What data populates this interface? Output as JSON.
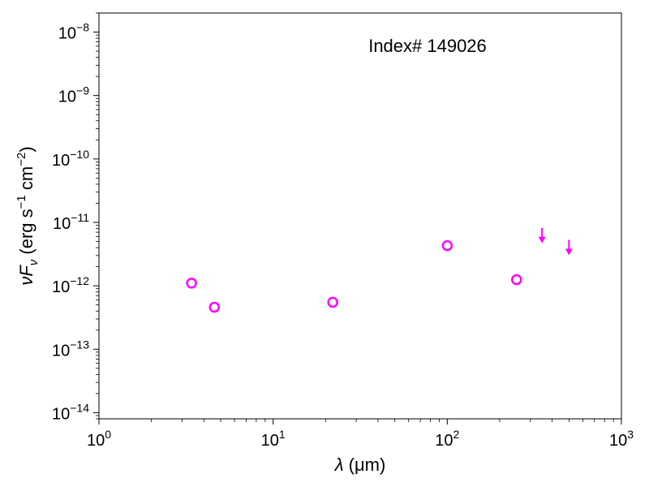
{
  "chart_data": {
    "type": "scatter",
    "annotation": "Index# 149026",
    "xlabel": {
      "symbol": "λ",
      "unit": "(μm)"
    },
    "ylabel": {
      "main": "νF",
      "sub": "ν",
      "unit_prefix": "(erg s",
      "sup1": "−1",
      "unit_mid": " cm",
      "sup2": "−2",
      "unit_suffix": ")"
    },
    "xscale": "log",
    "yscale": "log",
    "xlim": [
      1,
      1000
    ],
    "ylim": [
      8e-15,
      2e-08
    ],
    "xticks": [
      {
        "value": 1,
        "base": "10",
        "exp": "0"
      },
      {
        "value": 10,
        "base": "10",
        "exp": "1"
      },
      {
        "value": 100,
        "base": "10",
        "exp": "2"
      },
      {
        "value": 1000,
        "base": "10",
        "exp": "3"
      }
    ],
    "yticks": [
      {
        "value": 1e-14,
        "base": "10",
        "exp": "−14"
      },
      {
        "value": 1e-13,
        "base": "10",
        "exp": "−13"
      },
      {
        "value": 1e-12,
        "base": "10",
        "exp": "−12"
      },
      {
        "value": 1e-11,
        "base": "10",
        "exp": "−11"
      },
      {
        "value": 1e-10,
        "base": "10",
        "exp": "−10"
      },
      {
        "value": 1e-09,
        "base": "10",
        "exp": "−9"
      },
      {
        "value": 1e-08,
        "base": "10",
        "exp": "−8"
      }
    ],
    "marker_color": "#ff00ff",
    "detections": [
      {
        "x": 3.4,
        "y": 1.1e-12
      },
      {
        "x": 4.6,
        "y": 4.6e-13
      },
      {
        "x": 22,
        "y": 5.5e-13
      },
      {
        "x": 100,
        "y": 4.3e-12
      },
      {
        "x": 250,
        "y": 1.25e-12
      }
    ],
    "upper_limits": [
      {
        "x": 350,
        "y": 8.2e-12
      },
      {
        "x": 500,
        "y": 5.3e-12
      }
    ],
    "grid": false,
    "legend": "none"
  }
}
